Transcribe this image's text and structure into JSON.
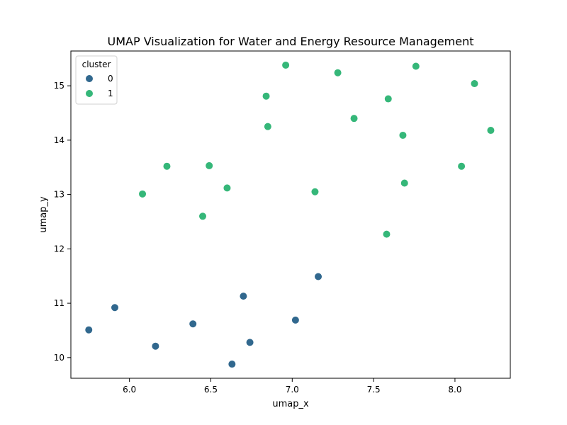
{
  "chart_data": {
    "type": "scatter",
    "title": "UMAP Visualization for Water and Energy Resource Management",
    "xlabel": "umap_x",
    "ylabel": "umap_y",
    "xlim": [
      5.64,
      8.34
    ],
    "ylim": [
      9.62,
      15.64
    ],
    "xticks": [
      6.0,
      6.5,
      7.0,
      7.5,
      8.0
    ],
    "xtick_labels": [
      "6.0",
      "6.5",
      "7.0",
      "7.5",
      "8.0"
    ],
    "yticks": [
      10,
      11,
      12,
      13,
      14,
      15
    ],
    "ytick_labels": [
      "10",
      "11",
      "12",
      "13",
      "14",
      "15"
    ],
    "grid": false,
    "legend": {
      "title": "cluster",
      "placement": "top-left"
    },
    "series": [
      {
        "name": "0",
        "color": "#31688e",
        "points": [
          [
            5.75,
            10.51
          ],
          [
            5.91,
            10.92
          ],
          [
            6.16,
            10.21
          ],
          [
            6.39,
            10.62
          ],
          [
            6.63,
            9.88
          ],
          [
            6.7,
            11.13
          ],
          [
            6.74,
            10.28
          ],
          [
            7.02,
            10.69
          ],
          [
            7.16,
            11.49
          ]
        ]
      },
      {
        "name": "1",
        "color": "#35b779",
        "points": [
          [
            6.08,
            13.01
          ],
          [
            6.23,
            13.52
          ],
          [
            6.45,
            12.6
          ],
          [
            6.49,
            13.53
          ],
          [
            6.6,
            13.12
          ],
          [
            6.84,
            14.81
          ],
          [
            6.85,
            14.25
          ],
          [
            6.96,
            15.38
          ],
          [
            7.14,
            13.05
          ],
          [
            7.28,
            15.24
          ],
          [
            7.38,
            14.4
          ],
          [
            7.58,
            12.27
          ],
          [
            7.59,
            14.76
          ],
          [
            7.68,
            14.09
          ],
          [
            7.69,
            13.21
          ],
          [
            7.76,
            15.36
          ],
          [
            8.04,
            13.52
          ],
          [
            8.12,
            15.04
          ],
          [
            8.22,
            14.18
          ]
        ]
      }
    ]
  }
}
